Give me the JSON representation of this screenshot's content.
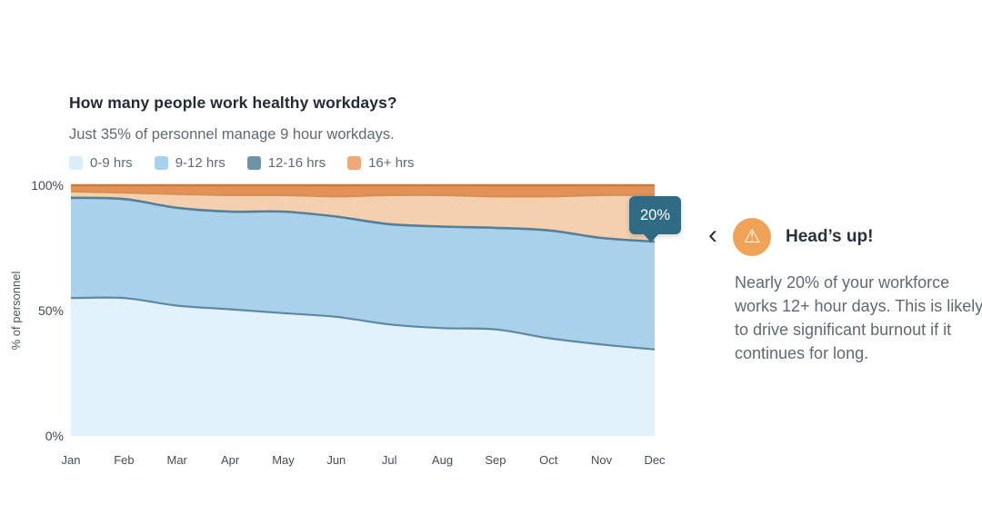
{
  "chart_data": {
    "type": "area",
    "title": "How many people work healthy workdays?",
    "subtitle": "Just 35% of personnel manage 9 hour workdays.",
    "stacked_percent": true,
    "x": [
      "Jan",
      "Feb",
      "Mar",
      "Apr",
      "May",
      "Jun",
      "Jul",
      "Aug",
      "Sep",
      "Oct",
      "Nov",
      "Dec"
    ],
    "ylabel": "% of personnel",
    "ylim": [
      0,
      100
    ],
    "grid": false,
    "legend_position": "top",
    "yticks": [
      {
        "label": "0%",
        "value": 0
      },
      {
        "label": "50%",
        "value": 50
      },
      {
        "label": "100%",
        "value": 100
      }
    ],
    "series": [
      {
        "name": "0-9 hrs",
        "swatch": "#d9edfa",
        "fill": "#e2f2fd",
        "stroke": "#5d89a4",
        "stroke_width": 2.2,
        "cumulative_top": [
          55,
          55,
          52,
          50.5,
          49,
          47.5,
          44.5,
          43,
          42.5,
          39,
          36.5,
          34.5
        ]
      },
      {
        "name": "9-12 hrs",
        "swatch": "#a9d2ea",
        "fill": "#a9d2ea",
        "stroke": "#54809b",
        "stroke_width": 2.6,
        "cumulative_top": [
          95,
          94.5,
          91,
          89.5,
          89.5,
          87.5,
          84.5,
          83.5,
          83,
          82,
          79,
          77.5
        ]
      },
      {
        "name": "12-16 hrs",
        "swatch": "#6f93a9",
        "fill": "#f4d0ae",
        "stroke": "#da8e50",
        "stroke_width": 2,
        "cumulative_top": [
          97.5,
          97,
          96.5,
          96,
          96,
          95.5,
          96,
          96,
          95.5,
          95.5,
          96,
          96
        ]
      },
      {
        "name": "16+ hrs",
        "swatch": "#efa876",
        "fill": "#e19254",
        "stroke": "#c97a3c",
        "stroke_width": 2.4,
        "cumulative_top": [
          100,
          100,
          100,
          100,
          100,
          100,
          100,
          100,
          100,
          100,
          100,
          100
        ]
      }
    ],
    "tooltip": {
      "label": "20%",
      "bg": "#2f6b85",
      "month": "Dec"
    }
  },
  "insight": {
    "nav_prev_glyph": "‹",
    "icon": "warning-icon",
    "icon_glyph": "⚠",
    "icon_bg": "#f0a257",
    "heading": "Head’s up!",
    "body": "Nearly 20% of your workforce works 12+ hour days. This is likely to drive significant burnout if it continues for long."
  }
}
